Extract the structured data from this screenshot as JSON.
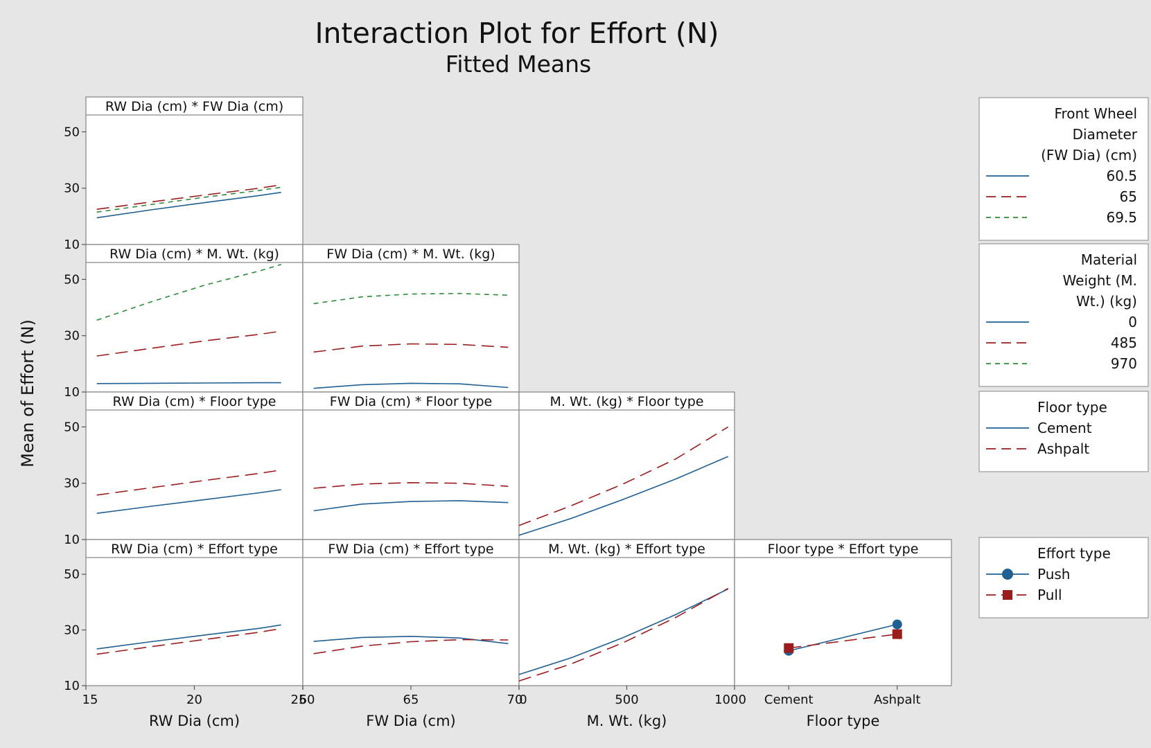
{
  "title": "Interaction Plot for Effort (N)",
  "subtitle": "Fitted Means",
  "y_label": "Mean of Effort (N)",
  "colors": {
    "series_1": "#1f5f92",
    "series_2": "#9b1c1c",
    "series_3": "#2e8b3a",
    "panel_bg": "#ffffff",
    "frame": "#8a8a8a",
    "page_bg": "#e6e6e6"
  },
  "legends": [
    {
      "title_lines": [
        "Front Wheel",
        "Diameter",
        "(FW Dia) (cm)"
      ],
      "entries": [
        "60.5",
        "65",
        "69.5"
      ],
      "markers": false
    },
    {
      "title_lines": [
        "Material",
        "Weight (M.",
        "Wt.) (kg)"
      ],
      "entries": [
        "0",
        "485",
        "970"
      ],
      "markers": false
    },
    {
      "title_lines": [
        "Floor type"
      ],
      "entries": [
        "Cement",
        "Ashpalt"
      ],
      "markers": false
    },
    {
      "title_lines": [
        "Effort type"
      ],
      "entries": [
        "Push",
        "Pull"
      ],
      "markers": true
    }
  ],
  "chart_data": {
    "type": "line",
    "title": "Interaction Plot for Effort (N)",
    "subtitle": "Fitted Means",
    "ylabel": "Mean of Effort (N)",
    "ylim": [
      10,
      56
    ],
    "y_ticks": [
      10,
      30,
      50
    ],
    "grid": false,
    "legend_position": "right",
    "x_factors": [
      {
        "name": "RW Dia (cm)",
        "ticks": [
          "15",
          "20",
          "25"
        ],
        "range": [
          15,
          25
        ]
      },
      {
        "name": "FW Dia (cm)",
        "ticks": [
          "60",
          "65",
          "70"
        ],
        "range": [
          60,
          70
        ]
      },
      {
        "name": "M. Wt. (kg)",
        "ticks": [
          "0",
          "500",
          "1000"
        ],
        "range": [
          0,
          1000
        ]
      },
      {
        "name": "Floor type",
        "ticks": [
          "Cement",
          "Ashpalt"
        ],
        "categories": [
          "Cement",
          "Ashpalt"
        ]
      }
    ],
    "panels": [
      {
        "title": "RW Dia (cm) * FW Dia (cm)",
        "row": 0,
        "col": 0,
        "x": [
          15.5,
          18,
          20.5,
          23,
          24
        ],
        "series": [
          {
            "name": "60.5",
            "style": 0,
            "values": [
              19.5,
              22.3,
              24.9,
              27.4,
              28.5
            ]
          },
          {
            "name": "65",
            "style": 1,
            "values": [
              22.5,
              25.1,
              27.6,
              30,
              31.2
            ]
          },
          {
            "name": "69.5",
            "style": 2,
            "values": [
              21.5,
              24.2,
              26.8,
              29.2,
              30.3
            ]
          }
        ]
      },
      {
        "title": "RW Dia (cm) * M. Wt. (kg)",
        "row": 1,
        "col": 0,
        "x": [
          15.5,
          18,
          20.5,
          23,
          24
        ],
        "series": [
          {
            "name": "0",
            "style": 0,
            "values": [
              13,
              13.1,
              13.2,
              13.3,
              13.3
            ]
          },
          {
            "name": "485",
            "style": 1,
            "values": [
              22.8,
              25.5,
              28.2,
              30.5,
              31.6
            ]
          },
          {
            "name": "970",
            "style": 2,
            "values": [
              35.5,
              42,
              48,
              53,
              55.3
            ]
          }
        ]
      },
      {
        "title": "FW Dia (cm) * M. Wt. (kg)",
        "row": 1,
        "col": 1,
        "x": [
          60.5,
          62.75,
          65,
          67.25,
          69.5
        ],
        "series": [
          {
            "name": "0",
            "style": 0,
            "values": [
              11.3,
              12.6,
              13.1,
              12.9,
              11.6
            ]
          },
          {
            "name": "485",
            "style": 1,
            "values": [
              24.2,
              26.3,
              27.1,
              26.9,
              25.9
            ]
          },
          {
            "name": "970",
            "style": 2,
            "values": [
              41.4,
              43.8,
              44.8,
              45,
              44.4
            ]
          }
        ]
      },
      {
        "title": "RW Dia (cm) * Floor type",
        "row": 2,
        "col": 0,
        "x": [
          15.5,
          18,
          20.5,
          23,
          24
        ],
        "series": [
          {
            "name": "Cement",
            "style": 0,
            "values": [
              19.3,
              21.8,
              24.2,
              26.6,
              27.7
            ]
          },
          {
            "name": "Ashpalt",
            "style": 1,
            "values": [
              25.8,
              28.4,
              31,
              33.5,
              34.7
            ]
          }
        ]
      },
      {
        "title": "FW Dia (cm) * Floor type",
        "row": 2,
        "col": 1,
        "x": [
          60.5,
          62.75,
          65,
          67.25,
          69.5
        ],
        "series": [
          {
            "name": "Cement",
            "style": 0,
            "values": [
              20.2,
              22.6,
              23.5,
              23.8,
              23.1
            ]
          },
          {
            "name": "Ashpalt",
            "style": 1,
            "values": [
              28.2,
              29.7,
              30.2,
              30,
              28.9
            ]
          }
        ]
      },
      {
        "title": "M. Wt. (kg) * Floor type",
        "row": 2,
        "col": 2,
        "x": [
          0,
          242,
          485,
          727,
          970
        ],
        "series": [
          {
            "name": "Cement",
            "style": 0,
            "values": [
              11.5,
              17.5,
              24.3,
              31.5,
              39.5
            ]
          },
          {
            "name": "Ashpalt",
            "style": 1,
            "values": [
              15,
              22,
              29.8,
              38.6,
              50
            ]
          }
        ]
      },
      {
        "title": "RW Dia (cm) * Effort type",
        "row": 3,
        "col": 0,
        "x": [
          15.5,
          18,
          20.5,
          23,
          24
        ],
        "series": [
          {
            "name": "Push",
            "style": 0,
            "values": [
              23.2,
              25.8,
              28.2,
              30.6,
              31.8
            ]
          },
          {
            "name": "Pull",
            "style": 1,
            "values": [
              21.3,
              24,
              26.6,
              29.2,
              30.5
            ]
          }
        ]
      },
      {
        "title": "FW Dia (cm) * Effort type",
        "row": 3,
        "col": 1,
        "x": [
          60.5,
          62.75,
          65,
          67.25,
          69.5
        ],
        "series": [
          {
            "name": "Push",
            "style": 0,
            "values": [
              25.9,
              27.3,
              27.7,
              27.1,
              25.1
            ]
          },
          {
            "name": "Pull",
            "style": 1,
            "values": [
              21.5,
              24.2,
              25.8,
              26.5,
              26.4
            ]
          }
        ]
      },
      {
        "title": "M. Wt. (kg) * Effort type",
        "row": 3,
        "col": 2,
        "x": [
          0,
          242,
          485,
          727,
          970
        ],
        "series": [
          {
            "name": "Push",
            "style": 0,
            "values": [
              14,
              20,
              27.3,
              35.5,
              44.7
            ]
          },
          {
            "name": "Pull",
            "style": 1,
            "values": [
              11.7,
              17.8,
              25.5,
              34.5,
              44.9
            ]
          }
        ]
      },
      {
        "title": "Floor type * Effort type",
        "row": 3,
        "col": 3,
        "categories": [
          "Cement",
          "Ashpalt"
        ],
        "markers": true,
        "series": [
          {
            "name": "Push",
            "style": 0,
            "marker": "circle",
            "values": [
              22.5,
              32
            ]
          },
          {
            "name": "Pull",
            "style": 1,
            "marker": "square",
            "values": [
              23.5,
              28.5
            ]
          }
        ]
      }
    ]
  }
}
